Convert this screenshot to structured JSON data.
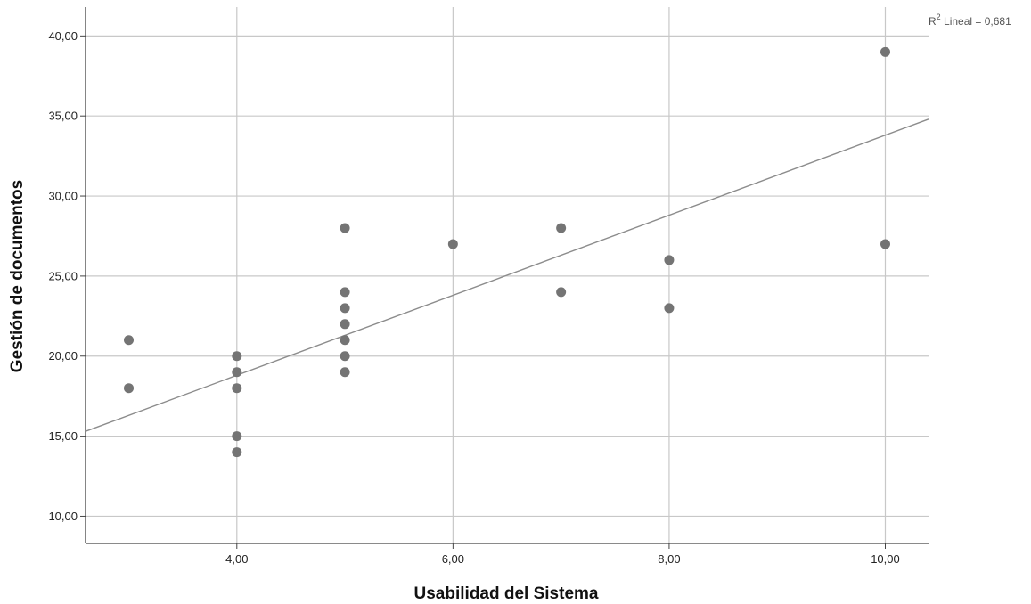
{
  "chart_data": {
    "type": "scatter",
    "title": "",
    "xlabel": "Usabilidad del Sistema",
    "ylabel": "Gestión de documentos",
    "xlim": [
      2.6,
      10.4
    ],
    "ylim": [
      8.3,
      41.8
    ],
    "x_ticks": [
      {
        "value": 4,
        "label": "4,00"
      },
      {
        "value": 6,
        "label": "6,00"
      },
      {
        "value": 8,
        "label": "8,00"
      },
      {
        "value": 10,
        "label": "10,00"
      }
    ],
    "y_ticks": [
      {
        "value": 10,
        "label": "10,00"
      },
      {
        "value": 15,
        "label": "15,00"
      },
      {
        "value": 20,
        "label": "20,00"
      },
      {
        "value": 25,
        "label": "25,00"
      },
      {
        "value": 30,
        "label": "30,00"
      },
      {
        "value": 35,
        "label": "35,00"
      },
      {
        "value": 40,
        "label": "40,00"
      }
    ],
    "grid": true,
    "point_color": "#747474",
    "line_color": "#8c8c8c",
    "grid_color": "#c8c8c8",
    "points": [
      {
        "x": 3,
        "y": 21
      },
      {
        "x": 3,
        "y": 18
      },
      {
        "x": 4,
        "y": 20
      },
      {
        "x": 4,
        "y": 19
      },
      {
        "x": 4,
        "y": 18
      },
      {
        "x": 4,
        "y": 15
      },
      {
        "x": 4,
        "y": 14
      },
      {
        "x": 5,
        "y": 28
      },
      {
        "x": 5,
        "y": 24
      },
      {
        "x": 5,
        "y": 23
      },
      {
        "x": 5,
        "y": 22
      },
      {
        "x": 5,
        "y": 21
      },
      {
        "x": 5,
        "y": 20
      },
      {
        "x": 5,
        "y": 19
      },
      {
        "x": 6,
        "y": 27
      },
      {
        "x": 7,
        "y": 28
      },
      {
        "x": 7,
        "y": 24
      },
      {
        "x": 8,
        "y": 26
      },
      {
        "x": 8,
        "y": 23
      },
      {
        "x": 10,
        "y": 39
      },
      {
        "x": 10,
        "y": 27
      }
    ],
    "fit_line": {
      "x": [
        2.6,
        10.4
      ],
      "y": [
        15.3,
        34.8
      ]
    },
    "annotation": {
      "prefix": "R",
      "superscript": "2",
      "text": " Lineal = 0,681"
    }
  }
}
